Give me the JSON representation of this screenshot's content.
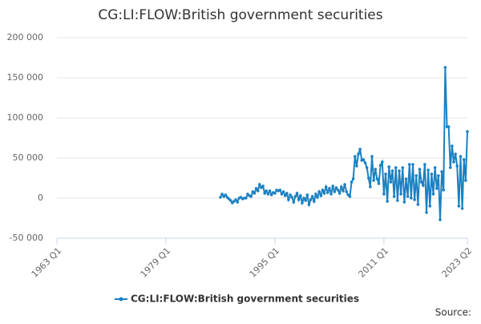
{
  "chart_data": {
    "type": "line",
    "title": "CG:LI:FLOW:British government securities",
    "source": "Source:",
    "xlim": [
      "1963 Q1",
      "2023 Q2"
    ],
    "xticks": [
      "1963 Q1",
      "1979 Q1",
      "1995 Q1",
      "2011 Q1",
      "2023 Q2"
    ],
    "ylim": [
      -50000,
      200000
    ],
    "yticks": [
      {
        "value": -50000,
        "label": "-50 000"
      },
      0,
      {
        "value": 50000,
        "label": "50 000"
      },
      {
        "value": 100000,
        "label": "100 000"
      },
      {
        "value": 150000,
        "label": "150 000"
      },
      {
        "value": 200000,
        "label": "200 000"
      }
    ],
    "grid": true,
    "legend": "bottom",
    "x": [
      "1987 Q1",
      "1987 Q2",
      "1987 Q3",
      "1987 Q4",
      "1988 Q1",
      "1988 Q2",
      "1988 Q3",
      "1988 Q4",
      "1989 Q1",
      "1989 Q2",
      "1989 Q3",
      "1989 Q4",
      "1990 Q1",
      "1990 Q2",
      "1990 Q3",
      "1990 Q4",
      "1991 Q1",
      "1991 Q2",
      "1991 Q3",
      "1991 Q4",
      "1992 Q1",
      "1992 Q2",
      "1992 Q3",
      "1992 Q4",
      "1993 Q1",
      "1993 Q2",
      "1993 Q3",
      "1993 Q4",
      "1994 Q1",
      "1994 Q2",
      "1994 Q3",
      "1994 Q4",
      "1995 Q1",
      "1995 Q2",
      "1995 Q3",
      "1995 Q4",
      "1996 Q1",
      "1996 Q2",
      "1996 Q3",
      "1996 Q4",
      "1997 Q1",
      "1997 Q2",
      "1997 Q3",
      "1997 Q4",
      "1998 Q1",
      "1998 Q2",
      "1998 Q3",
      "1998 Q4",
      "1999 Q1",
      "1999 Q2",
      "1999 Q3",
      "1999 Q4",
      "2000 Q1",
      "2000 Q2",
      "2000 Q3",
      "2000 Q4",
      "2001 Q1",
      "2001 Q2",
      "2001 Q3",
      "2001 Q4",
      "2002 Q1",
      "2002 Q2",
      "2002 Q3",
      "2002 Q4",
      "2003 Q1",
      "2003 Q2",
      "2003 Q3",
      "2003 Q4",
      "2004 Q1",
      "2004 Q2",
      "2004 Q3",
      "2004 Q4",
      "2005 Q1",
      "2005 Q2",
      "2005 Q3",
      "2005 Q4",
      "2006 Q1",
      "2006 Q2",
      "2006 Q3",
      "2006 Q4",
      "2007 Q1",
      "2007 Q2",
      "2007 Q3",
      "2007 Q4",
      "2008 Q1",
      "2008 Q2",
      "2008 Q3",
      "2008 Q4",
      "2009 Q1",
      "2009 Q2",
      "2009 Q3",
      "2009 Q4",
      "2010 Q1",
      "2010 Q2",
      "2010 Q3",
      "2010 Q4",
      "2011 Q1",
      "2011 Q2",
      "2011 Q3",
      "2011 Q4",
      "2012 Q1",
      "2012 Q2",
      "2012 Q3",
      "2012 Q4",
      "2013 Q1",
      "2013 Q2",
      "2013 Q3",
      "2013 Q4",
      "2014 Q1",
      "2014 Q2",
      "2014 Q3",
      "2014 Q4",
      "2015 Q1",
      "2015 Q2",
      "2015 Q3",
      "2015 Q4",
      "2016 Q1",
      "2016 Q2",
      "2016 Q3",
      "2016 Q4",
      "2017 Q1",
      "2017 Q2",
      "2017 Q3",
      "2017 Q4",
      "2018 Q1",
      "2018 Q2",
      "2018 Q3",
      "2018 Q4",
      "2019 Q1",
      "2019 Q2",
      "2019 Q3",
      "2019 Q4",
      "2020 Q1",
      "2020 Q2",
      "2020 Q3",
      "2020 Q4",
      "2021 Q1",
      "2021 Q2",
      "2021 Q3",
      "2021 Q4",
      "2022 Q1",
      "2022 Q2",
      "2022 Q3",
      "2022 Q4",
      "2023 Q1",
      "2023 Q2"
    ],
    "series": [
      {
        "name": "CG:LI:FLOW:British government securities",
        "color": "#1a81c2",
        "values": [
          1000,
          5000,
          2000,
          4000,
          1000,
          -1000,
          -3000,
          -6000,
          -4000,
          -2000,
          -5000,
          0,
          1000,
          -1000,
          0,
          0,
          5000,
          3000,
          2000,
          8000,
          6000,
          12000,
          9000,
          17000,
          13000,
          15000,
          6000,
          9000,
          5000,
          9000,
          4000,
          7000,
          6000,
          10000,
          9000,
          10000,
          5000,
          8000,
          3000,
          6000,
          -2000,
          4000,
          1000,
          -5000,
          2000,
          6000,
          -2000,
          3000,
          -6000,
          0,
          -3000,
          4000,
          -8000,
          -2000,
          2000,
          -4000,
          5000,
          1000,
          8000,
          3000,
          10000,
          6000,
          14000,
          7000,
          12000,
          5000,
          15000,
          8000,
          13000,
          10000,
          6000,
          14000,
          9000,
          17000,
          8000,
          4000,
          2000,
          20000,
          24000,
          52000,
          40000,
          55000,
          61000,
          47000,
          48000,
          44000,
          38000,
          25000,
          14000,
          52000,
          22000,
          36000,
          24000,
          18000,
          41000,
          45000,
          5000,
          30000,
          -4000,
          39000,
          20000,
          34000,
          2000,
          38000,
          -3000,
          34000,
          5000,
          38000,
          -5000,
          24000,
          2000,
          42000,
          0,
          42000,
          -2000,
          28000,
          -8000,
          36000,
          20000,
          16000,
          42000,
          -18000,
          35000,
          -10000,
          30000,
          5000,
          38000,
          12000,
          28000,
          -27000,
          33000,
          10000,
          163000,
          89000,
          89000,
          38000,
          65000,
          45000,
          55000,
          40000,
          -10000,
          52000,
          -13000,
          48000,
          22000,
          83000
        ]
      }
    ]
  }
}
